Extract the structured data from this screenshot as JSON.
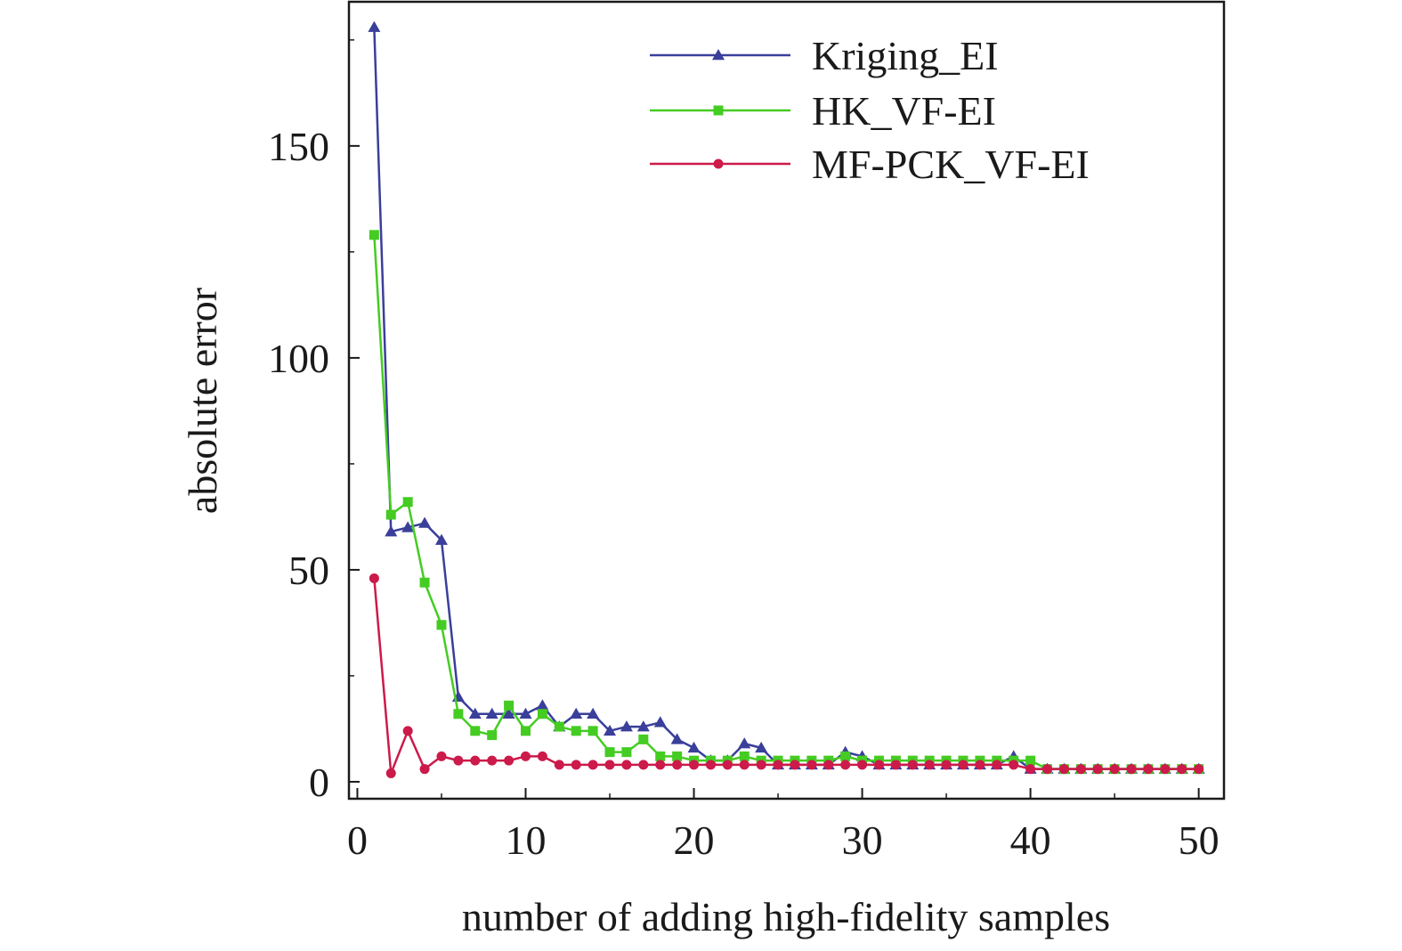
{
  "chart_data": {
    "type": "line",
    "title": "",
    "xlabel": "number of adding high-fidelity samples",
    "ylabel": "absolute error",
    "xlim": [
      -0.5,
      51.5
    ],
    "ylim": [
      -4,
      184
    ],
    "xticks": [
      0,
      10,
      20,
      30,
      40,
      50
    ],
    "yticks": [
      0,
      50,
      100,
      150
    ],
    "grid": false,
    "legend_position": "top-right",
    "x": [
      1,
      2,
      3,
      4,
      5,
      6,
      7,
      8,
      9,
      10,
      11,
      12,
      13,
      14,
      15,
      16,
      17,
      18,
      19,
      20,
      21,
      22,
      23,
      24,
      25,
      26,
      27,
      28,
      29,
      30,
      31,
      32,
      33,
      34,
      35,
      36,
      37,
      38,
      39,
      40,
      41,
      42,
      43,
      44,
      45,
      46,
      47,
      48,
      49,
      50
    ],
    "series": [
      {
        "name": "Kriging_EI",
        "color": "#3a3f9a",
        "marker": "triangle",
        "values": [
          178,
          59,
          60,
          61,
          57,
          20,
          16,
          16,
          16,
          16,
          18,
          13,
          16,
          16,
          12,
          13,
          13,
          14,
          10,
          8,
          5,
          5,
          9,
          8,
          4,
          4,
          4,
          4,
          7,
          6,
          4,
          4,
          4,
          4,
          4,
          4,
          4,
          4,
          6,
          3,
          3,
          3,
          3,
          3,
          3,
          3,
          3,
          3,
          3,
          3
        ]
      },
      {
        "name": "HK_VF-EI",
        "color": "#44cc22",
        "marker": "square",
        "values": [
          129,
          63,
          66,
          47,
          37,
          16,
          12,
          11,
          18,
          12,
          16,
          13,
          12,
          12,
          7,
          7,
          10,
          6,
          6,
          5,
          5,
          5,
          6,
          5,
          5,
          5,
          5,
          5,
          6,
          5,
          5,
          5,
          5,
          5,
          5,
          5,
          5,
          5,
          5,
          5,
          3,
          3,
          3,
          3,
          3,
          3,
          3,
          3,
          3,
          3
        ]
      },
      {
        "name": "MF-PCK_VF-EI",
        "color": "#cc1a4a",
        "marker": "circle",
        "values": [
          48,
          2,
          12,
          3,
          6,
          5,
          5,
          5,
          5,
          6,
          6,
          4,
          4,
          4,
          4,
          4,
          4,
          4,
          4,
          4,
          4,
          4,
          4,
          4,
          4,
          4,
          4,
          4,
          4,
          4,
          4,
          4,
          4,
          4,
          4,
          4,
          4,
          4,
          4,
          3,
          3,
          3,
          3,
          3,
          3,
          3,
          3,
          3,
          3,
          3
        ]
      }
    ]
  },
  "colors": {
    "axis": "#1a1a1a",
    "background": "#ffffff"
  }
}
